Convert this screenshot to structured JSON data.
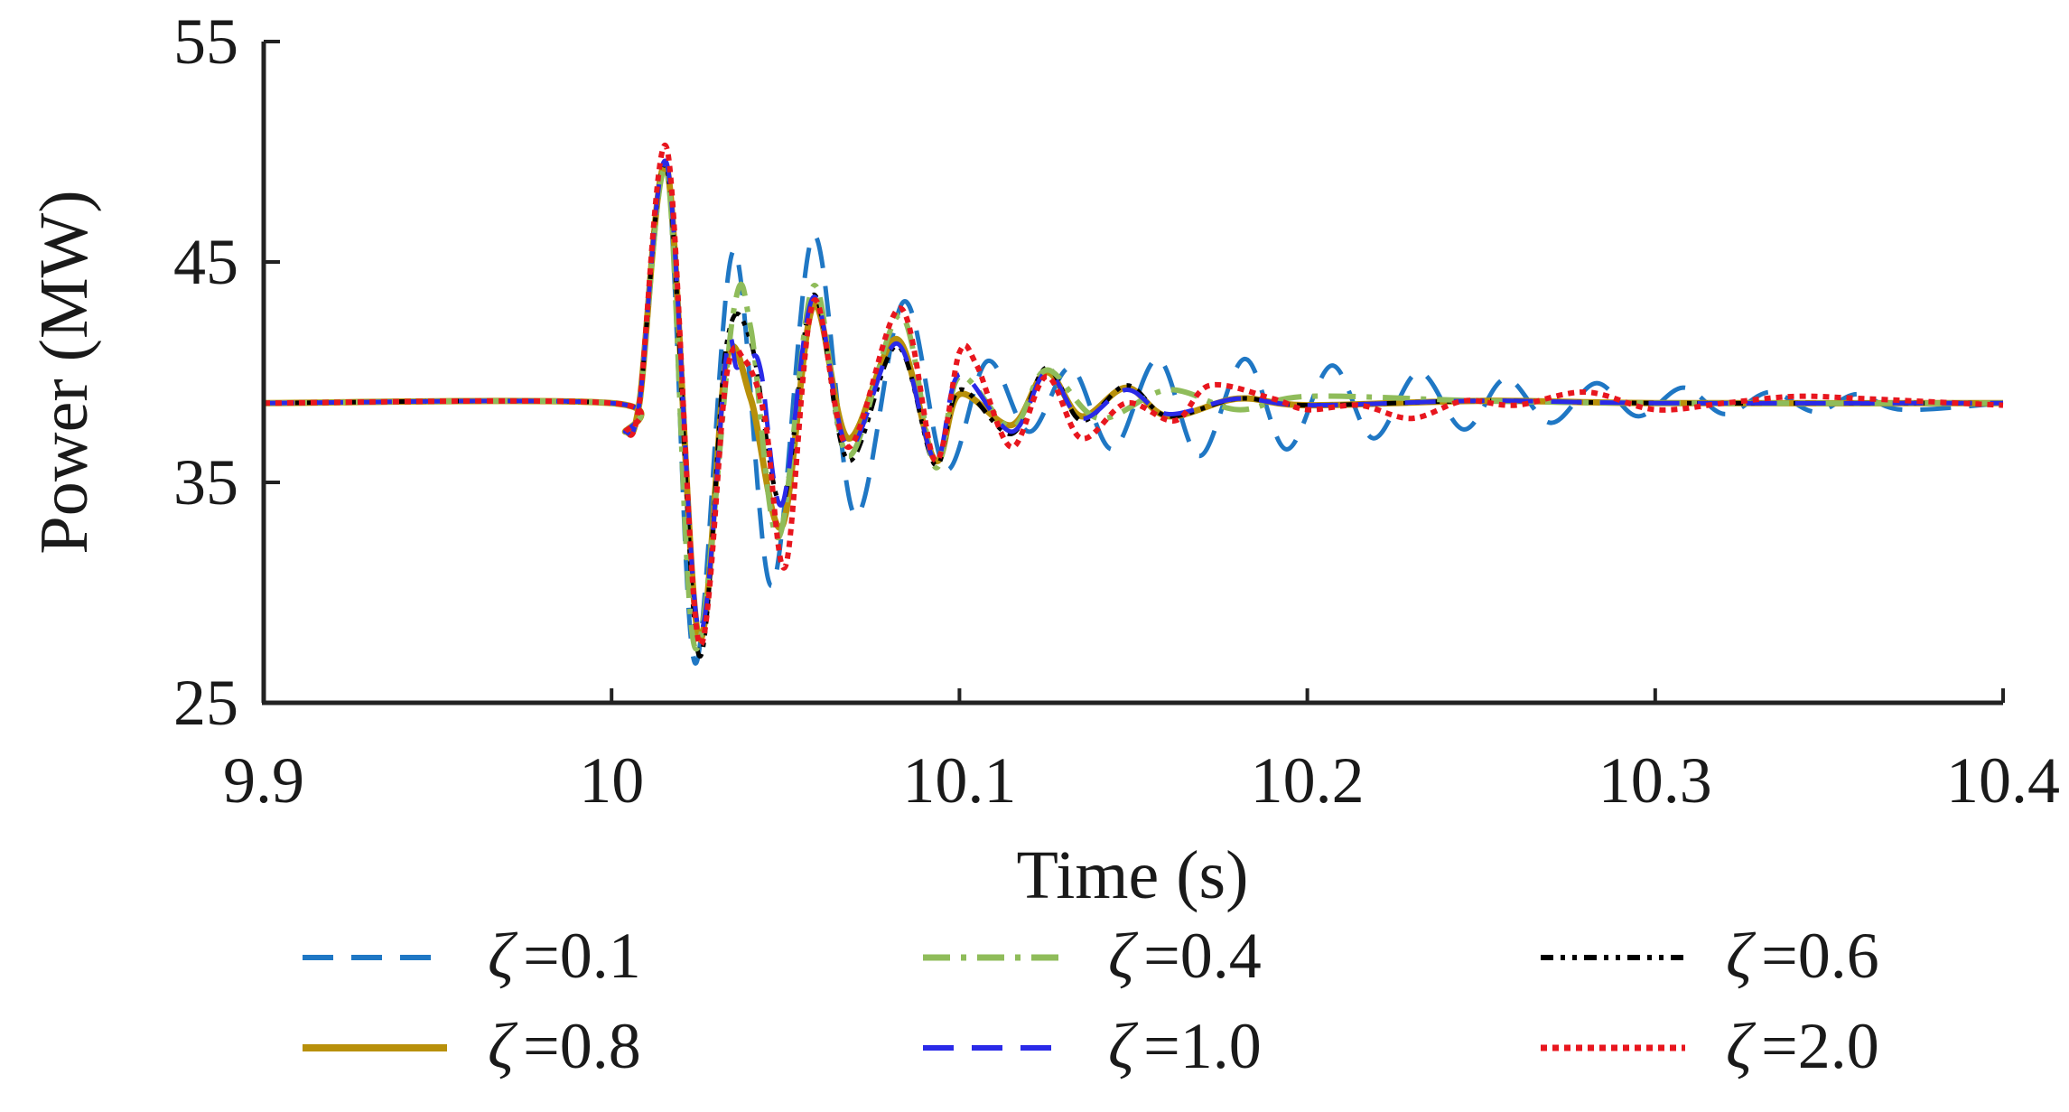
{
  "chart_data": {
    "type": "line",
    "title": "",
    "xlabel": "Time (s)",
    "ylabel": "Power (MW)",
    "xlim": [
      9.9,
      10.4
    ],
    "ylim": [
      25,
      55
    ],
    "xticks": [
      "9.9",
      "10",
      "10.1",
      "10.2",
      "10.3",
      "10.4"
    ],
    "xtick_values": [
      9.9,
      10.0,
      10.1,
      10.2,
      10.3,
      10.4
    ],
    "yticks": [
      "25",
      "35",
      "45",
      "55"
    ],
    "ytick_values": [
      25,
      35,
      45,
      55
    ],
    "grid": false,
    "legend_position": "bottom",
    "legend_symbol": "ζ",
    "series": [
      {
        "name": "ζ=0.1",
        "symbol": "ζ",
        "value_label": "=0.1",
        "color": "#1f77c4",
        "style": "dash",
        "param": 0.1,
        "x": [
          9.9,
          10.0,
          10.004,
          10.008,
          10.016,
          10.024,
          10.035,
          10.046,
          10.058,
          10.07,
          10.084,
          10.096,
          10.108,
          10.12,
          10.132,
          10.144,
          10.157,
          10.169,
          10.182,
          10.194,
          10.207,
          10.219,
          10.232,
          10.245,
          10.257,
          10.27,
          10.283,
          10.295,
          10.308,
          10.32,
          10.333,
          10.346,
          10.358,
          10.371,
          10.4
        ],
        "y": [
          38.6,
          38.6,
          37.3,
          38.6,
          49.0,
          26.8,
          45.5,
          30.3,
          46.2,
          33.5,
          43.2,
          35.6,
          40.5,
          37.3,
          40.2,
          36.5,
          40.6,
          36.2,
          40.6,
          36.5,
          40.3,
          37.0,
          40.0,
          37.4,
          39.7,
          37.7,
          39.5,
          38.0,
          39.3,
          38.1,
          39.1,
          38.2,
          39.0,
          38.3,
          38.6
        ]
      },
      {
        "name": "ζ=0.4",
        "symbol": "ζ",
        "value_label": "=0.4",
        "color": "#8fbc5a",
        "style": "dashdot",
        "param": 0.4,
        "x": [
          9.9,
          10.0,
          10.004,
          10.008,
          10.016,
          10.024,
          10.035,
          10.04,
          10.048,
          10.058,
          10.068,
          10.083,
          10.093,
          10.1,
          10.115,
          10.125,
          10.14,
          10.16,
          10.18,
          10.2,
          10.25,
          10.3,
          10.4
        ],
        "y": [
          38.6,
          38.6,
          37.3,
          38.6,
          49.0,
          27.5,
          42.7,
          42.0,
          32.5,
          43.9,
          36.2,
          42.6,
          35.7,
          39.8,
          37.5,
          40.1,
          37.9,
          39.2,
          38.3,
          38.9,
          38.7,
          38.6,
          38.6
        ]
      },
      {
        "name": "ζ=0.6",
        "symbol": "ζ",
        "value_label": "=0.6",
        "color": "#000000",
        "style": "dashdotdot",
        "param": 0.6,
        "x": [
          9.9,
          10.0,
          10.004,
          10.008,
          10.016,
          10.025,
          10.033,
          10.04,
          10.049,
          10.058,
          10.068,
          10.082,
          10.093,
          10.1,
          10.115,
          10.125,
          10.135,
          10.148,
          10.16,
          10.18,
          10.2,
          10.25,
          10.3,
          10.4
        ],
        "y": [
          38.6,
          38.6,
          37.3,
          38.6,
          49.2,
          27.2,
          41.2,
          41.4,
          34.0,
          43.5,
          36.0,
          41.2,
          35.8,
          39.2,
          37.2,
          40.2,
          37.8,
          39.4,
          38.0,
          38.8,
          38.5,
          38.7,
          38.6,
          38.6
        ]
      },
      {
        "name": "ζ=0.8",
        "symbol": "ζ",
        "value_label": "=0.8",
        "color": "#b8900a",
        "style": "solid",
        "param": 0.8,
        "x": [
          9.9,
          10.0,
          10.004,
          10.008,
          10.016,
          10.025,
          10.033,
          10.04,
          10.049,
          10.058,
          10.068,
          10.082,
          10.093,
          10.1,
          10.115,
          10.125,
          10.135,
          10.148,
          10.16,
          10.18,
          10.2,
          10.25,
          10.3,
          10.4
        ],
        "y": [
          38.6,
          38.6,
          37.3,
          38.6,
          49.2,
          28.0,
          40.5,
          38.8,
          33.0,
          43.0,
          37.0,
          41.5,
          36.0,
          39.0,
          37.6,
          40.0,
          38.0,
          39.3,
          38.0,
          38.8,
          38.5,
          38.7,
          38.6,
          38.6
        ]
      },
      {
        "name": "ζ=1.0",
        "symbol": "ζ",
        "value_label": "=1.0",
        "color": "#2a2ae8",
        "style": "dash",
        "param": 1.0,
        "x": [
          9.9,
          10.0,
          10.004,
          10.008,
          10.016,
          10.025,
          10.033,
          10.036,
          10.04,
          10.043,
          10.049,
          10.058,
          10.068,
          10.082,
          10.093,
          10.1,
          10.115,
          10.125,
          10.135,
          10.148,
          10.16,
          10.18,
          10.2,
          10.25,
          10.3,
          10.4
        ],
        "y": [
          38.6,
          38.6,
          37.3,
          38.6,
          49.4,
          28.3,
          40.8,
          40.2,
          40.7,
          40.0,
          34.0,
          43.4,
          36.6,
          41.3,
          36.0,
          39.9,
          37.3,
          40.0,
          37.9,
          39.2,
          38.1,
          38.8,
          38.5,
          38.7,
          38.6,
          38.6
        ]
      },
      {
        "name": "ζ=2.0",
        "symbol": "ζ",
        "value_label": "=2.0",
        "color": "#e8161e",
        "style": "dot",
        "param": 2.0,
        "x": [
          9.9,
          10.0,
          10.004,
          10.008,
          10.016,
          10.025,
          10.033,
          10.038,
          10.044,
          10.05,
          10.058,
          10.068,
          10.083,
          10.093,
          10.1,
          10.105,
          10.115,
          10.125,
          10.135,
          10.148,
          10.162,
          10.172,
          10.19,
          10.2,
          10.215,
          10.23,
          10.245,
          10.26,
          10.28,
          10.3,
          10.32,
          10.34,
          10.36,
          10.4
        ],
        "y": [
          38.6,
          38.6,
          37.3,
          38.6,
          50.1,
          27.8,
          39.8,
          40.6,
          38.0,
          31.2,
          43.2,
          36.6,
          42.9,
          36.0,
          40.9,
          40.3,
          36.6,
          39.8,
          37.0,
          38.6,
          37.8,
          39.4,
          38.8,
          38.3,
          38.5,
          37.9,
          38.7,
          38.5,
          39.1,
          38.3,
          38.6,
          38.9,
          38.8,
          38.5
        ]
      }
    ]
  }
}
